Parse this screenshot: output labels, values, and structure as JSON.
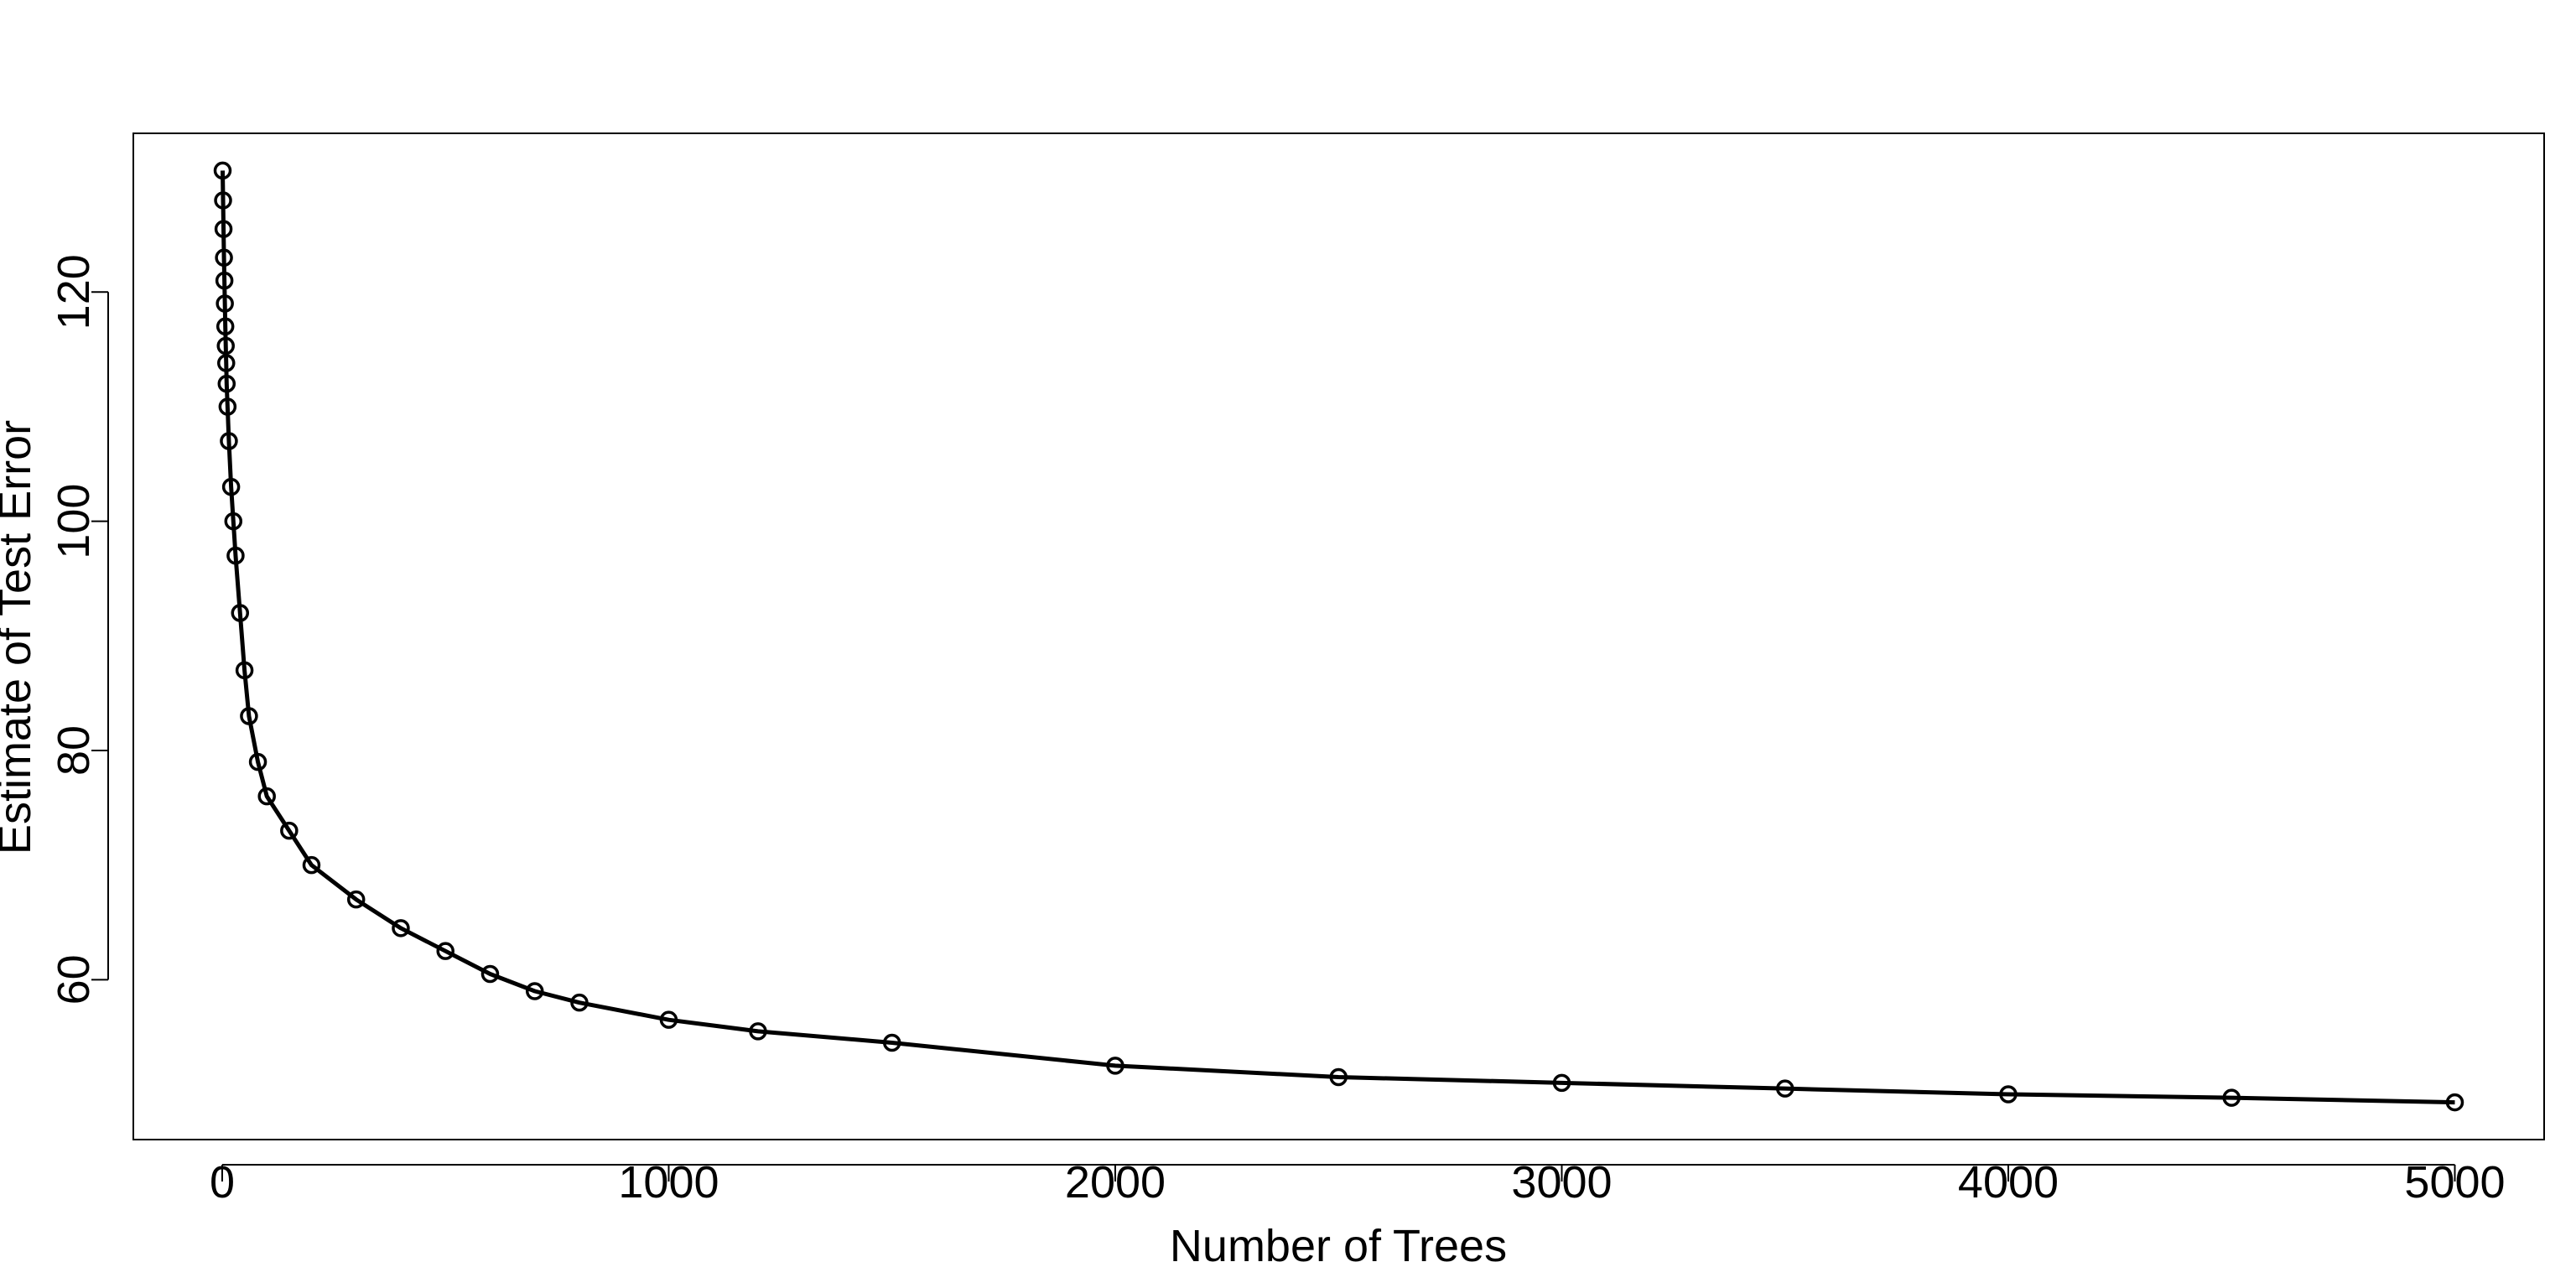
{
  "chart_data": {
    "type": "line",
    "xlabel": "Number of Trees",
    "ylabel": "Estimate of Test Error",
    "x": [
      1,
      2,
      3,
      4,
      5,
      6,
      7,
      8,
      9,
      10,
      12,
      15,
      20,
      25,
      30,
      40,
      50,
      60,
      80,
      100,
      150,
      200,
      300,
      400,
      500,
      600,
      700,
      800,
      1000,
      1200,
      1500,
      2000,
      2500,
      3000,
      3500,
      4000,
      4500,
      5000
    ],
    "series": [
      {
        "color": "#000000",
        "values": [
          130.6,
          128,
          125.5,
          123,
          121,
          119,
          117,
          115.3,
          113.8,
          112,
          110,
          107,
          103,
          100,
          97,
          92,
          87,
          83,
          79,
          76,
          73,
          70,
          67,
          64.5,
          62.5,
          60.5,
          59,
          58,
          56.5,
          55.5,
          54.5,
          52.5,
          51.5,
          51,
          50.5,
          50,
          49.7,
          49.3
        ]
      }
    ],
    "markers": true,
    "xlim": [
      -199,
      5200
    ],
    "ylim": [
      46.05,
      133.85
    ],
    "xticks": [
      0,
      1000,
      2000,
      3000,
      4000,
      5000
    ],
    "yticks": [
      60,
      80,
      100,
      120
    ],
    "grid": false
  }
}
